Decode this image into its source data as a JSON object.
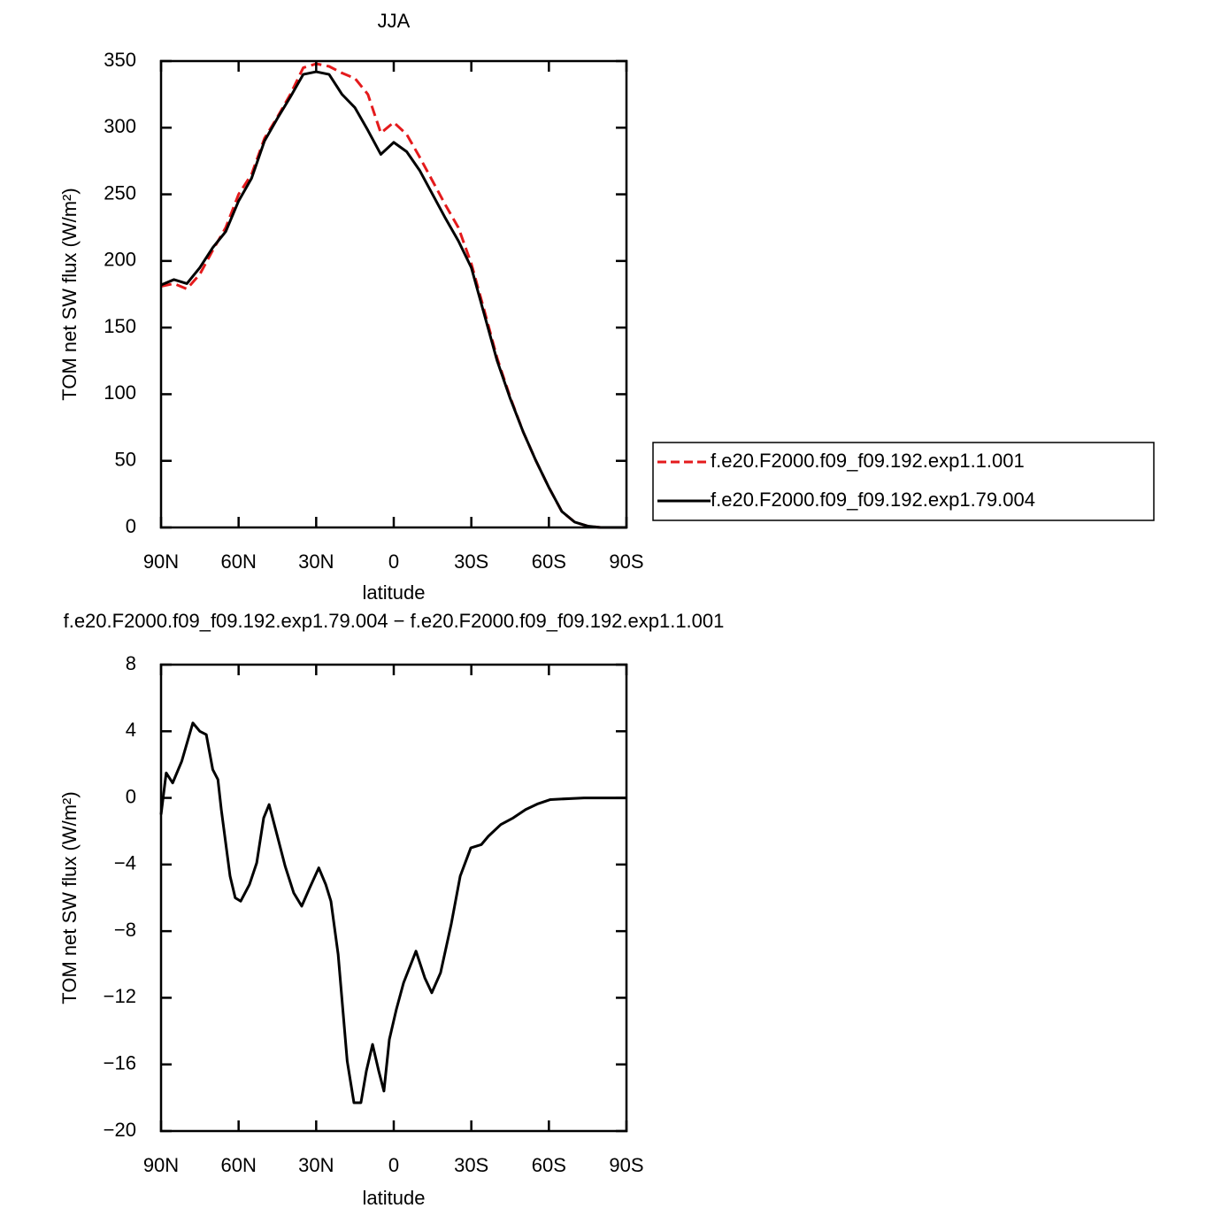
{
  "chart_data": [
    {
      "type": "line",
      "title": "JJA",
      "xlabel": "latitude",
      "ylabel": "TOM net SW flux (W/m²)",
      "x": [
        90,
        85,
        80,
        75,
        70,
        65,
        60,
        55,
        50,
        45,
        40,
        35,
        30,
        25,
        20,
        15,
        10,
        5,
        0,
        -5,
        -10,
        -15,
        -20,
        -25,
        -30,
        -35,
        -40,
        -45,
        -50,
        -55,
        -60,
        -65,
        -70,
        -75,
        -80,
        -85,
        -90
      ],
      "series": [
        {
          "name": "f.e20.F2000.f09_f09.192.exp1.1.001",
          "color": "#e41a1c",
          "dashed": true,
          "values": [
            181,
            183,
            179,
            190,
            208,
            225,
            250,
            265,
            292,
            308,
            325,
            345,
            348,
            346,
            341,
            337,
            325,
            296,
            304,
            295,
            278,
            260,
            242,
            225,
            198,
            163,
            127,
            98,
            72,
            50,
            30,
            12,
            4,
            1,
            0,
            0,
            0
          ]
        },
        {
          "name": "f.e20.F2000.f09_f09.192.exp1.79.004",
          "color": "#000000",
          "dashed": false,
          "values": [
            182,
            186,
            183,
            195,
            210,
            222,
            245,
            262,
            290,
            307,
            323,
            340,
            342,
            340,
            325,
            315,
            298,
            280,
            289,
            282,
            268,
            250,
            232,
            215,
            195,
            160,
            125,
            97,
            72,
            50,
            30,
            12,
            4,
            1,
            0,
            0,
            0
          ]
        }
      ],
      "xlim": [
        90,
        -90
      ],
      "xticks": [
        {
          "value": 90,
          "label": "90N"
        },
        {
          "value": 60,
          "label": "60N"
        },
        {
          "value": 30,
          "label": "30N"
        },
        0,
        {
          "value": -30,
          "label": "30S"
        },
        {
          "value": -60,
          "label": "60S"
        },
        {
          "value": -90,
          "label": "90S"
        }
      ],
      "ylim": [
        0,
        350
      ],
      "yticks": [
        0,
        50,
        100,
        150,
        200,
        250,
        300,
        350
      ],
      "legend": "right"
    },
    {
      "type": "line",
      "title": "f.e20.F2000.f09_f09.192.exp1.79.004 − f.e20.F2000.f09_f09.192.exp1.1.001",
      "xlabel": "latitude",
      "ylabel": "TOM net SW flux (W/m²)",
      "x": [
        90,
        88,
        85.5,
        82,
        77.7,
        75,
        72.5,
        70,
        68,
        66.7,
        63.3,
        61.3,
        59.2,
        55.8,
        53,
        50.3,
        48.2,
        45,
        42,
        38.7,
        35.6,
        32.5,
        29,
        26.3,
        24.3,
        21.5,
        18,
        15.4,
        12.7,
        10.6,
        8.2,
        5.8,
        3.8,
        1.7,
        -1,
        -3.8,
        -8.6,
        -12,
        -14.7,
        -18.1,
        -22.2,
        -25.7,
        -29.8,
        -33.9,
        -36.6,
        -41.4,
        -46.2,
        -51,
        -55.8,
        -60.6,
        -73.6,
        -90
      ],
      "series": [
        {
          "color": "#000000",
          "dashed": false,
          "values": [
            -1.0,
            1.5,
            0.9,
            2.2,
            4.5,
            4.0,
            3.8,
            1.7,
            1.1,
            -0.7,
            -4.7,
            -6.0,
            -6.2,
            -5.2,
            -3.9,
            -1.2,
            -0.4,
            -2.3,
            -4.1,
            -5.7,
            -6.5,
            -5.4,
            -4.2,
            -5.2,
            -6.2,
            -9.4,
            -15.8,
            -18.3,
            -18.3,
            -16.4,
            -14.8,
            -16.4,
            -17.6,
            -14.5,
            -12.7,
            -11.1,
            -9.2,
            -10.8,
            -11.7,
            -10.5,
            -7.6,
            -4.7,
            -3.0,
            -2.8,
            -2.3,
            -1.6,
            -1.2,
            -0.7,
            -0.35,
            -0.1,
            0,
            0
          ]
        }
      ],
      "xlim": [
        90,
        -90
      ],
      "xticks": [
        {
          "value": 90,
          "label": "90N"
        },
        {
          "value": 60,
          "label": "60N"
        },
        {
          "value": 30,
          "label": "30N"
        },
        0,
        {
          "value": -30,
          "label": "30S"
        },
        {
          "value": -60,
          "label": "60S"
        },
        {
          "value": -90,
          "label": "90S"
        }
      ],
      "ylim": [
        -20,
        8
      ],
      "yticks": [
        {
          "value": -20,
          "label": "−20"
        },
        {
          "value": -16,
          "label": "−16"
        },
        {
          "value": -12,
          "label": "−12"
        },
        {
          "value": -8,
          "label": "−8"
        },
        {
          "value": -4,
          "label": "−4"
        },
        0,
        4,
        8
      ]
    }
  ]
}
